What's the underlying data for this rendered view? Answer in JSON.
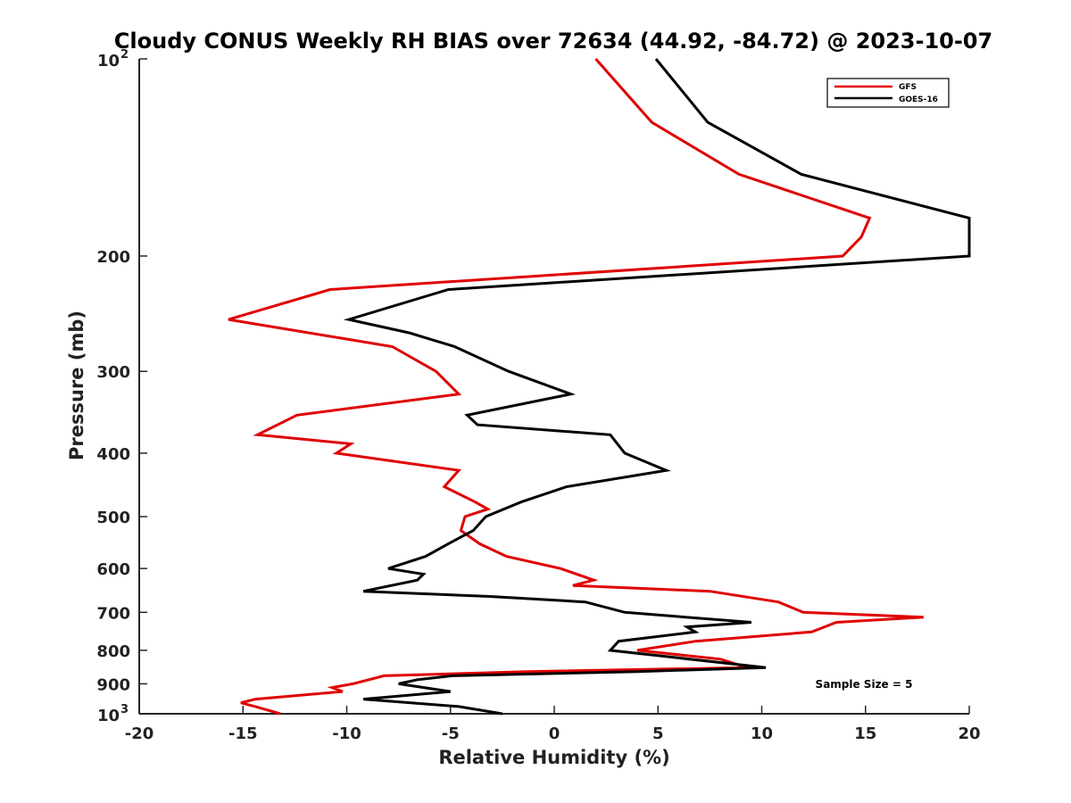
{
  "chart_data": {
    "type": "line",
    "title": "Cloudy CONUS Weekly RH BIAS over 72634 (44.92, -84.72) @ 2023-10-07",
    "xlabel": "Relative Humidity (%)",
    "ylabel": "Pressure (mb)",
    "xlim": [
      -20,
      20
    ],
    "ylim": [
      100,
      1000
    ],
    "y_scale": "log",
    "y_reversed": true,
    "grid": false,
    "legend_position": "top-right",
    "x_ticks": [
      "-20",
      "-15",
      "-10",
      "-5",
      "0",
      "5",
      "10",
      "15",
      "20"
    ],
    "y_ticks": [
      {
        "value": 100,
        "label": "10",
        "sup": "2"
      },
      {
        "value": 200,
        "label": "200",
        "sup": ""
      },
      {
        "value": 300,
        "label": "300",
        "sup": ""
      },
      {
        "value": 400,
        "label": "400",
        "sup": ""
      },
      {
        "value": 500,
        "label": "500",
        "sup": ""
      },
      {
        "value": 600,
        "label": "600",
        "sup": ""
      },
      {
        "value": 700,
        "label": "700",
        "sup": ""
      },
      {
        "value": 800,
        "label": "800",
        "sup": ""
      },
      {
        "value": 900,
        "label": "900",
        "sup": ""
      },
      {
        "value": 1000,
        "label": "10",
        "sup": "3"
      }
    ],
    "annotation": "Sample Size = 5",
    "series": [
      {
        "name": "GFS",
        "color": "#e00000",
        "points": [
          {
            "x": 2.0,
            "y": 100
          },
          {
            "x": 4.7,
            "y": 125
          },
          {
            "x": 8.9,
            "y": 150
          },
          {
            "x": 15.2,
            "y": 175
          },
          {
            "x": 14.8,
            "y": 187
          },
          {
            "x": 13.9,
            "y": 200
          },
          {
            "x": -10.8,
            "y": 225
          },
          {
            "x": -15.7,
            "y": 250
          },
          {
            "x": -7.8,
            "y": 275
          },
          {
            "x": -5.7,
            "y": 300
          },
          {
            "x": -4.6,
            "y": 325
          },
          {
            "x": -12.4,
            "y": 350
          },
          {
            "x": -14.3,
            "y": 375
          },
          {
            "x": -9.8,
            "y": 387
          },
          {
            "x": -10.5,
            "y": 400
          },
          {
            "x": -4.6,
            "y": 425
          },
          {
            "x": -5.3,
            "y": 450
          },
          {
            "x": -3.8,
            "y": 475
          },
          {
            "x": -3.2,
            "y": 487
          },
          {
            "x": -4.3,
            "y": 500
          },
          {
            "x": -4.5,
            "y": 525
          },
          {
            "x": -3.6,
            "y": 550
          },
          {
            "x": -2.3,
            "y": 575
          },
          {
            "x": 0.3,
            "y": 600
          },
          {
            "x": 1.9,
            "y": 625
          },
          {
            "x": 0.9,
            "y": 637
          },
          {
            "x": 7.5,
            "y": 650
          },
          {
            "x": 10.8,
            "y": 675
          },
          {
            "x": 12.0,
            "y": 700
          },
          {
            "x": 17.8,
            "y": 712
          },
          {
            "x": 13.6,
            "y": 725
          },
          {
            "x": 12.4,
            "y": 750
          },
          {
            "x": 6.8,
            "y": 775
          },
          {
            "x": 4.0,
            "y": 800
          },
          {
            "x": 8.0,
            "y": 825
          },
          {
            "x": 9.3,
            "y": 850
          },
          {
            "x": -1.3,
            "y": 862
          },
          {
            "x": -8.2,
            "y": 875
          },
          {
            "x": -9.7,
            "y": 900
          },
          {
            "x": -10.7,
            "y": 912
          },
          {
            "x": -10.2,
            "y": 925
          },
          {
            "x": -14.4,
            "y": 950
          },
          {
            "x": -15.1,
            "y": 962
          },
          {
            "x": -14.4,
            "y": 975
          },
          {
            "x": -13.2,
            "y": 1000
          }
        ]
      },
      {
        "name": "GOES-16",
        "color": "#000000",
        "points": [
          {
            "x": 4.9,
            "y": 100
          },
          {
            "x": 7.4,
            "y": 125
          },
          {
            "x": 11.9,
            "y": 150
          },
          {
            "x": 20.0,
            "y": 175
          },
          {
            "x": 20.0,
            "y": 200
          },
          {
            "x": -5.1,
            "y": 225
          },
          {
            "x": -9.9,
            "y": 250
          },
          {
            "x": -7.0,
            "y": 262
          },
          {
            "x": -4.8,
            "y": 275
          },
          {
            "x": -2.2,
            "y": 300
          },
          {
            "x": 0.8,
            "y": 325
          },
          {
            "x": -4.2,
            "y": 350
          },
          {
            "x": -3.7,
            "y": 362
          },
          {
            "x": 2.7,
            "y": 375
          },
          {
            "x": 3.4,
            "y": 400
          },
          {
            "x": 5.4,
            "y": 425
          },
          {
            "x": 0.6,
            "y": 450
          },
          {
            "x": -1.6,
            "y": 475
          },
          {
            "x": -3.3,
            "y": 500
          },
          {
            "x": -3.9,
            "y": 525
          },
          {
            "x": -5.1,
            "y": 550
          },
          {
            "x": -6.2,
            "y": 575
          },
          {
            "x": -8.0,
            "y": 600
          },
          {
            "x": -6.3,
            "y": 612
          },
          {
            "x": -6.6,
            "y": 625
          },
          {
            "x": -9.2,
            "y": 650
          },
          {
            "x": -3.1,
            "y": 662
          },
          {
            "x": 1.5,
            "y": 675
          },
          {
            "x": 3.4,
            "y": 700
          },
          {
            "x": 9.5,
            "y": 725
          },
          {
            "x": 6.4,
            "y": 737
          },
          {
            "x": 6.8,
            "y": 750
          },
          {
            "x": 3.1,
            "y": 775
          },
          {
            "x": 2.7,
            "y": 800
          },
          {
            "x": 10.2,
            "y": 850
          },
          {
            "x": 4.0,
            "y": 862
          },
          {
            "x": -4.9,
            "y": 875
          },
          {
            "x": -6.6,
            "y": 887
          },
          {
            "x": -7.5,
            "y": 900
          },
          {
            "x": -5.0,
            "y": 925
          },
          {
            "x": -9.2,
            "y": 950
          },
          {
            "x": -4.6,
            "y": 975
          },
          {
            "x": -2.5,
            "y": 1000
          }
        ]
      }
    ]
  }
}
